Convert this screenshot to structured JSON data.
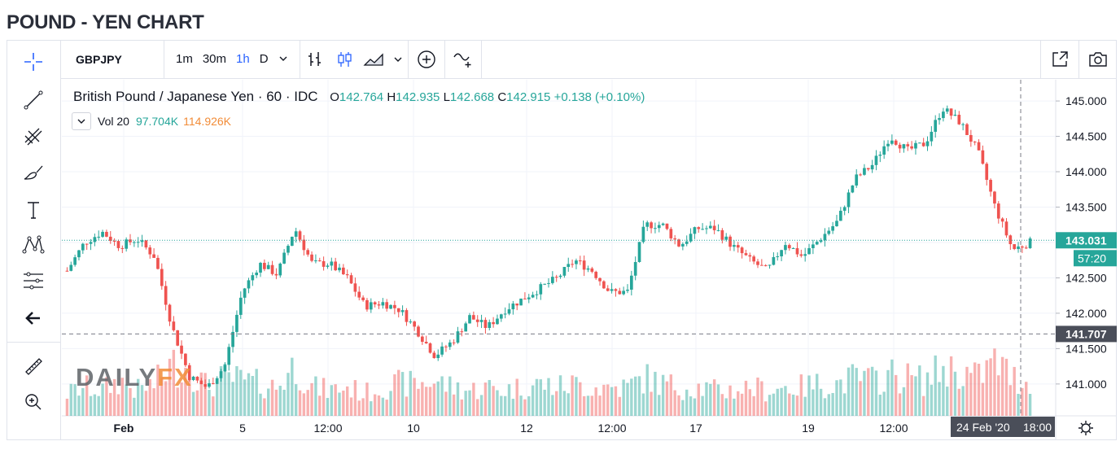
{
  "page": {
    "title": "POUND - YEN CHART"
  },
  "toolbar": {
    "symbol": "GBPJPY",
    "timeframes": [
      "1m",
      "30m",
      "1h",
      "D"
    ],
    "active_timeframe": "1h",
    "icons": [
      "chevron-down-icon",
      "bar-chart-icon",
      "candles-icon",
      "area-chart-icon",
      "chevron-down-icon",
      "add-indicator-icon",
      "compare-icon",
      "open-new-window-icon",
      "camera-icon"
    ]
  },
  "leftbar": {
    "icons": [
      "crosshair-icon",
      "trend-line-icon",
      "pitchfork-icon",
      "brush-icon",
      "text-icon",
      "pattern-icon",
      "prediction-icon",
      "back-arrow-icon",
      "ruler-icon",
      "zoom-in-icon"
    ]
  },
  "legend": {
    "name": "British Pound / Japanese Yen · 60 · IDC",
    "open_label": "O",
    "open": "142.764",
    "high_label": "H",
    "high": "142.935",
    "low_label": "L",
    "low": "142.668",
    "close_label": "C",
    "close": "142.915",
    "change": "+0.138 (+0.10%)"
  },
  "volume_legend": {
    "label": "Vol 20",
    "value1": "97.704K",
    "value2": "114.926K"
  },
  "watermark": {
    "part1": "DAILY",
    "part2": "FX"
  },
  "colors": {
    "up": "#26a69a",
    "down": "#ef5350",
    "accent": "#2962ff",
    "price_line": "#26a69a"
  },
  "chart_data": {
    "type": "candlestick",
    "y_ticks": [
      "145.000",
      "144.500",
      "144.000",
      "143.500",
      "143.000",
      "142.500",
      "142.000",
      "141.500",
      "141.000"
    ],
    "ylim": [
      140.55,
      145.3
    ],
    "x_labels": [
      "Feb",
      "5",
      "12:00",
      "10",
      "12",
      "12:00",
      "17",
      "19",
      "12:00"
    ],
    "last_price": "143.031",
    "countdown": "57:20",
    "crosshair_price": "141.707",
    "crosshair_time": "24 Feb '20",
    "crosshair_time2": "18:00",
    "price_path": [
      142.6,
      143.0,
      143.15,
      142.95,
      143.05,
      142.8,
      141.8,
      141.1,
      140.95,
      141.25,
      142.3,
      142.7,
      142.55,
      143.2,
      142.7,
      142.7,
      142.5,
      142.1,
      142.15,
      142.05,
      141.75,
      141.4,
      141.6,
      141.95,
      141.8,
      142.05,
      142.2,
      142.35,
      142.5,
      142.75,
      142.6,
      142.3,
      142.3,
      143.25,
      143.25,
      142.95,
      143.2,
      143.2,
      142.95,
      142.75,
      142.6,
      143.0,
      142.8,
      143.05,
      143.3,
      143.9,
      144.1,
      144.5,
      144.3,
      144.4,
      144.9,
      144.7,
      144.3,
      143.5,
      142.9,
      143.0
    ],
    "volume_path": [
      0.35,
      0.45,
      0.4,
      0.55,
      0.4,
      0.5,
      0.8,
      0.75,
      0.45,
      0.6,
      0.55,
      0.5,
      0.45,
      0.8,
      0.45,
      0.4,
      0.45,
      0.35,
      0.45,
      0.5,
      0.5,
      0.55,
      0.45,
      0.4,
      0.45,
      0.4,
      0.45,
      0.5,
      0.45,
      0.5,
      0.45,
      0.45,
      0.45,
      0.6,
      0.5,
      0.45,
      0.45,
      0.4,
      0.4,
      0.45,
      0.4,
      0.45,
      0.45,
      0.5,
      0.5,
      0.6,
      0.55,
      0.65,
      0.6,
      0.55,
      0.75,
      0.7,
      0.6,
      0.85,
      0.6,
      0.5
    ]
  }
}
